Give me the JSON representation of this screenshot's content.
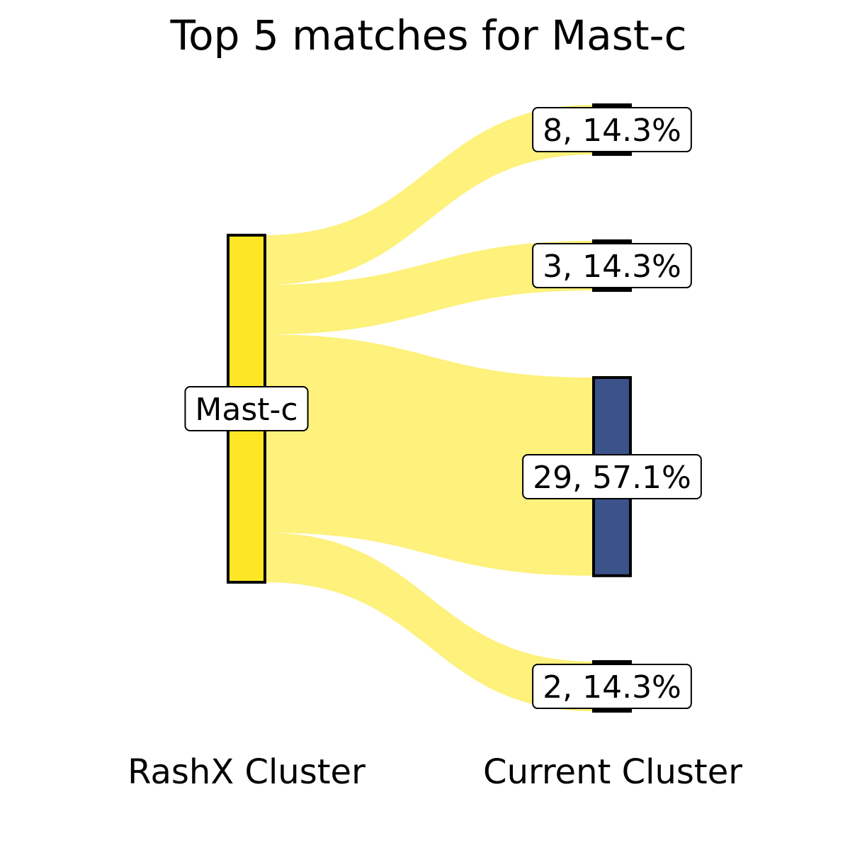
{
  "chart_data": {
    "type": "sankey",
    "title": "Top 5 matches for Mast-c",
    "left_label": "RashX Cluster",
    "right_label": "Current Cluster",
    "source": {
      "label": "Mast-c",
      "color": "#fde725"
    },
    "flow_color": "#fef17c",
    "targets": [
      {
        "label": "8, 14.3%",
        "fraction": 0.143,
        "color": "#000000"
      },
      {
        "label": "3, 14.3%",
        "fraction": 0.143,
        "color": "#000000"
      },
      {
        "label": "29, 57.1%",
        "fraction": 0.571,
        "color": "#3b528b"
      },
      {
        "label": "2, 14.3%",
        "fraction": 0.143,
        "color": "#000000"
      }
    ]
  }
}
